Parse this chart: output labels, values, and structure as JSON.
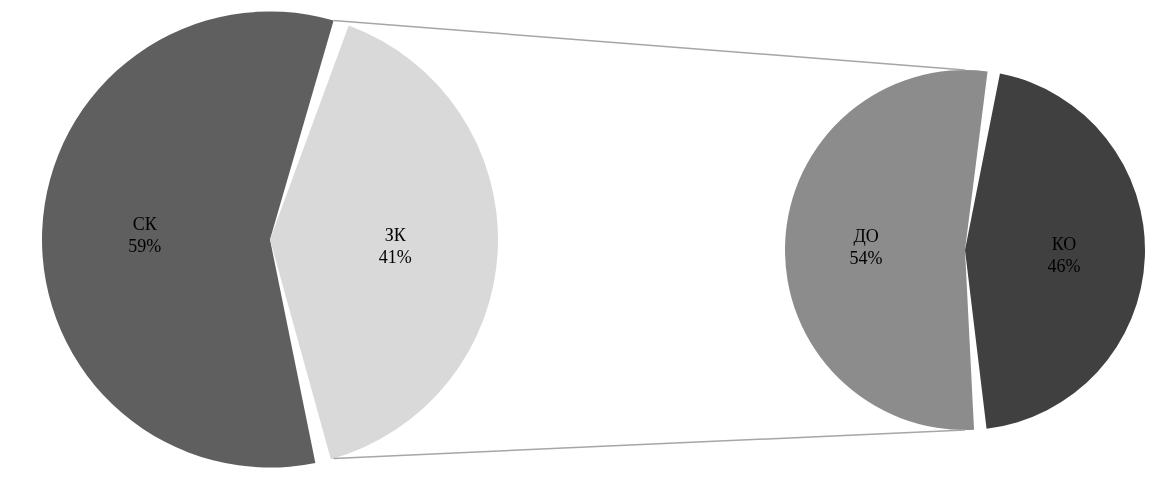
{
  "chart_data": [
    {
      "type": "pie",
      "categories": [
        "СК",
        "ЗК"
      ],
      "values": [
        59,
        41
      ],
      "colors": [
        "#5f5f5f",
        "#d9d9d9"
      ],
      "value_labels": [
        "59%",
        "41%"
      ]
    },
    {
      "type": "pie",
      "categories": [
        "ДО",
        "КО"
      ],
      "values": [
        54,
        46
      ],
      "colors": [
        "#8c8c8c",
        "#404040"
      ],
      "value_labels": [
        "54%",
        "46%"
      ]
    }
  ]
}
